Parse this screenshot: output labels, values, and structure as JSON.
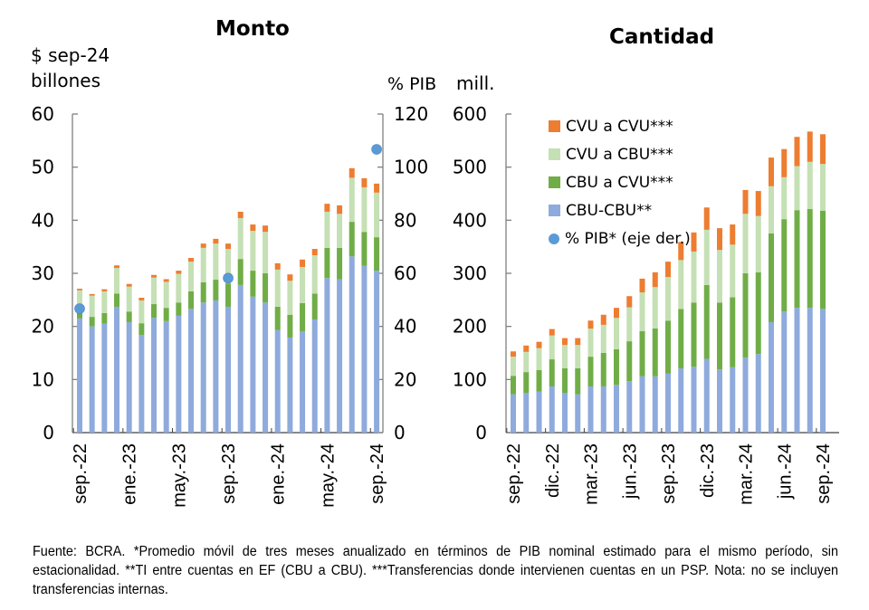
{
  "chart_data": [
    {
      "type": "bar",
      "stacked": true,
      "title": "Monto",
      "ylabel": "$ sep-24 billones",
      "ylabel_right": "% PIB",
      "ylim": [
        0,
        60
      ],
      "yticks": [
        0,
        10,
        20,
        30,
        40,
        50,
        60
      ],
      "ylim_right": [
        0,
        120
      ],
      "yticks_right": [
        0,
        20,
        40,
        60,
        80,
        100,
        120
      ],
      "categories": [
        "sep.-22",
        "oct.-22",
        "nov.-22",
        "dic.-22",
        "ene.-23",
        "feb.-23",
        "mar.-23",
        "abr.-23",
        "may.-23",
        "jun.-23",
        "jul.-23",
        "ago.-23",
        "sep.-23",
        "oct.-23",
        "nov.-23",
        "dic.-23",
        "ene.-24",
        "feb.-24",
        "mar.-24",
        "abr.-24",
        "may.-24",
        "jun.-24",
        "jul.-24",
        "ago.-24",
        "sep.-24"
      ],
      "xtick_labels": [
        "sep.-22",
        "ene.-23",
        "may.-23",
        "sep.-23",
        "ene.-24",
        "may.-24",
        "sep.-24"
      ],
      "xtick_indices": [
        0,
        4,
        8,
        12,
        16,
        20,
        24
      ],
      "series": [
        {
          "name": "CBU-CBU**",
          "color": "#8FAADC",
          "values": [
            21.5,
            20.0,
            20.5,
            23.7,
            20.8,
            18.4,
            21.6,
            21.0,
            22.0,
            23.3,
            24.5,
            24.9,
            23.7,
            27.8,
            25.6,
            24.5,
            19.3,
            17.9,
            19.1,
            21.3,
            29.1,
            28.9,
            33.2,
            31.4,
            30.5
          ]
        },
        {
          "name": "CBU a CVU***",
          "color": "#70AD47",
          "values": [
            2.0,
            1.8,
            2.0,
            2.5,
            2.0,
            2.2,
            2.6,
            2.5,
            2.5,
            3.3,
            3.8,
            3.9,
            4.4,
            4.9,
            4.9,
            5.5,
            4.4,
            4.3,
            5.3,
            4.9,
            5.7,
            5.9,
            6.5,
            6.4,
            6.3
          ]
        },
        {
          "name": "CVU a CBU***",
          "color": "#C5E0B4",
          "values": [
            3.3,
            4.0,
            4.1,
            4.8,
            4.7,
            4.3,
            5.0,
            4.9,
            5.4,
            5.6,
            6.5,
            6.8,
            6.5,
            7.7,
            7.5,
            7.8,
            7.0,
            6.4,
            6.8,
            7.2,
            6.8,
            6.4,
            8.3,
            8.4,
            8.4
          ]
        },
        {
          "name": "CVU a CVU***",
          "color": "#ED7D31",
          "values": [
            0.3,
            0.3,
            0.4,
            0.5,
            0.5,
            0.5,
            0.5,
            0.5,
            0.6,
            0.7,
            0.8,
            0.9,
            1.0,
            1.2,
            1.2,
            1.2,
            1.2,
            1.2,
            1.4,
            1.2,
            1.5,
            1.6,
            1.8,
            1.7,
            1.7
          ]
        }
      ],
      "line_series": {
        "name": "% PIB* (eje der.)",
        "color": "#5B9BD5",
        "axis": "right",
        "points": [
          {
            "index": 0,
            "value": 46.7
          },
          {
            "index": 12,
            "value": 58.2
          },
          {
            "index": 24,
            "value": 106.7
          }
        ]
      }
    },
    {
      "type": "bar",
      "stacked": true,
      "title": "Cantidad",
      "ylabel": "mill.",
      "ylim": [
        0,
        600
      ],
      "yticks": [
        0,
        100,
        200,
        300,
        400,
        500,
        600
      ],
      "categories": [
        "sep.-22",
        "oct.-22",
        "nov.-22",
        "dic.-22",
        "ene.-23",
        "feb.-23",
        "mar.-23",
        "abr.-23",
        "may.-23",
        "jun.-23",
        "jul.-23",
        "ago.-23",
        "sep.-23",
        "oct.-23",
        "nov.-23",
        "dic.-23",
        "ene.-24",
        "feb.-24",
        "mar.-24",
        "abr.-24",
        "may.-24",
        "jun.-24",
        "jul.-24",
        "ago.-24",
        "sep.-24"
      ],
      "xtick_labels": [
        "sep.-22",
        "dic.-22",
        "mar.-23",
        "jun.-23",
        "sep.-23",
        "dic.-23",
        "mar.-24",
        "jun.-24",
        "sep.-24"
      ],
      "xtick_indices": [
        0,
        3,
        6,
        9,
        12,
        15,
        18,
        21,
        24
      ],
      "series": [
        {
          "name": "CBU-CBU**",
          "color": "#8FAADC",
          "values": [
            72,
            75,
            77,
            87,
            75,
            72,
            87,
            87,
            90,
            97,
            106,
            106,
            111,
            121,
            124,
            139,
            119,
            123,
            141,
            148,
            208,
            228,
            235,
            235,
            233
          ]
        },
        {
          "name": "CBU a CVU***",
          "color": "#70AD47",
          "values": [
            35,
            39,
            41,
            51,
            46,
            49,
            56,
            63,
            67,
            75,
            85,
            90,
            100,
            112,
            121,
            139,
            126,
            132,
            159,
            154,
            167,
            174,
            184,
            186,
            185
          ]
        },
        {
          "name": "CVU a CBU***",
          "color": "#C5E0B4",
          "values": [
            36,
            38,
            41,
            45,
            44,
            44,
            53,
            53,
            59,
            64,
            73,
            78,
            82,
            92,
            96,
            104,
            99,
            99,
            112,
            106,
            89,
            79,
            83,
            89,
            88
          ]
        },
        {
          "name": "CVU a CVU***",
          "color": "#ED7D31",
          "values": [
            10,
            12,
            12,
            12,
            13,
            13,
            15,
            19,
            19,
            21,
            26,
            28,
            29,
            34,
            36,
            42,
            41,
            38,
            45,
            47,
            54,
            53,
            55,
            57,
            56
          ]
        }
      ]
    }
  ],
  "legend": {
    "items": [
      {
        "label": "CVU a CVU***",
        "color": "#ED7D31",
        "kind": "square"
      },
      {
        "label": "CVU a CBU***",
        "color": "#C5E0B4",
        "kind": "square"
      },
      {
        "label": "CBU a CVU***",
        "color": "#70AD47",
        "kind": "square"
      },
      {
        "label": "CBU-CBU**",
        "color": "#8FAADC",
        "kind": "square"
      },
      {
        "label": "% PIB* (eje der.)",
        "color": "#5B9BD5",
        "kind": "dot"
      }
    ]
  },
  "footnote": "Fuente: BCRA. *Promedio móvil de tres meses anualizado en términos de PIB nominal estimado para el mismo período, sin estacionalidad. **TI entre cuentas en EF (CBU a CBU). ***Transferencias donde intervienen cuentas en un PSP. Nota: no se incluyen transferencias internas."
}
